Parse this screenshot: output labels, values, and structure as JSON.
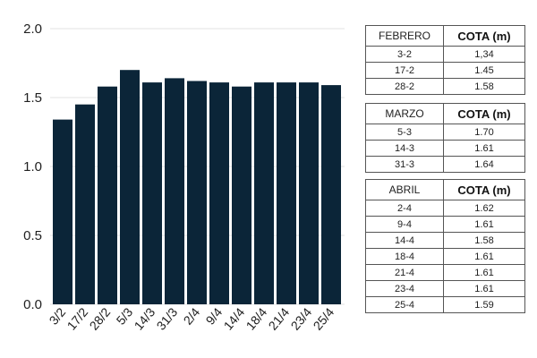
{
  "chart_data": {
    "type": "bar",
    "categories": [
      "3/2",
      "17/2",
      "28/2",
      "5/3",
      "14/3",
      "31/3",
      "2/4",
      "9/4",
      "14/4",
      "18/4",
      "21/4",
      "23/4",
      "25/4"
    ],
    "values": [
      1.34,
      1.45,
      1.58,
      1.7,
      1.61,
      1.64,
      1.62,
      1.61,
      1.58,
      1.61,
      1.61,
      1.61,
      1.59
    ],
    "ylim": [
      0,
      2.0
    ],
    "yticks": [
      "0.0",
      "0.5",
      "1.0",
      "1.5",
      "2.0"
    ],
    "ytick_values": [
      0,
      0.5,
      1.0,
      1.5,
      2.0
    ],
    "grid": true,
    "bar_color": "#0b2538",
    "title": "",
    "xlabel": "",
    "ylabel": ""
  },
  "tables": [
    {
      "month": "FEBRERO",
      "col_header": "COTA (m)",
      "rows": [
        {
          "date": "3-2",
          "value": "1,34"
        },
        {
          "date": "17-2",
          "value": "1.45"
        },
        {
          "date": "28-2",
          "value": "1.58"
        }
      ]
    },
    {
      "month": "MARZO",
      "col_header": "COTA (m)",
      "rows": [
        {
          "date": "5-3",
          "value": "1.70"
        },
        {
          "date": "14-3",
          "value": "1.61"
        },
        {
          "date": "31-3",
          "value": "1.64"
        }
      ]
    },
    {
      "month": "ABRIL",
      "col_header": "COTA (m)",
      "rows": [
        {
          "date": "2-4",
          "value": "1.62"
        },
        {
          "date": "9-4",
          "value": "1.61"
        },
        {
          "date": "14-4",
          "value": "1.58"
        },
        {
          "date": "18-4",
          "value": "1.61"
        },
        {
          "date": "21-4",
          "value": "1.61"
        },
        {
          "date": "23-4",
          "value": "1.61"
        },
        {
          "date": "25-4",
          "value": "1.59"
        }
      ]
    }
  ]
}
